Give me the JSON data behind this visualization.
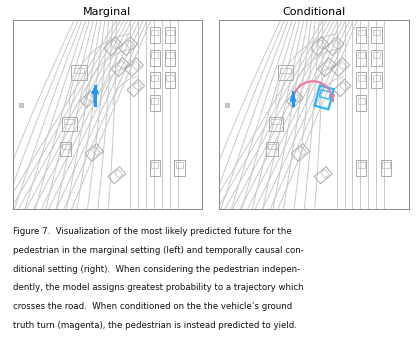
{
  "title_left": "Marginal",
  "title_right": "Conditional",
  "caption_lines": [
    "Figure 7.  Visualization of the most likely predicted future for the",
    "pedestrian in the marginal setting (left) and temporally causal con-",
    "ditional setting (right).  When considering the pedestrian indepen-",
    "dently, the model assigns greatest probability to a trajectory which",
    "crosses the road.  When conditioned on the the vehicle’s ground",
    "truth turn (magenta), the pedestrian is instead predicted to yield."
  ],
  "bg_color": "#ffffff",
  "panel_bg": "#ffffff",
  "road_line_color": "#c8c8c8",
  "car_edge_color": "#aaaaaa",
  "traj_blue": "#2196F3",
  "traj_magenta": "#e879a0",
  "traj_cyan": "#29b6f6",
  "dot_color": "#bbbbbb",
  "road_lines_diag": [
    [
      [
        -2,
        12
      ],
      [
        2.5,
        5.5
      ]
    ],
    [
      [
        -1.5,
        12
      ],
      [
        2.5,
        5.5
      ]
    ],
    [
      [
        -1.0,
        12
      ],
      [
        2.5,
        5.5
      ]
    ],
    [
      [
        -0.5,
        12
      ],
      [
        2.5,
        5.5
      ]
    ],
    [
      [
        0.0,
        12
      ],
      [
        2.5,
        5.5
      ]
    ],
    [
      [
        0.5,
        12
      ],
      [
        2.5,
        5.5
      ]
    ],
    [
      [
        1.0,
        12
      ],
      [
        2.5,
        5.5
      ]
    ],
    [
      [
        1.5,
        12
      ],
      [
        2.5,
        5.5
      ]
    ],
    [
      [
        2.0,
        12
      ],
      [
        2.5,
        5.5
      ]
    ],
    [
      [
        2.5,
        12
      ],
      [
        2.5,
        5.5
      ]
    ]
  ],
  "cars_top_right": [
    [
      7.5,
      9.2,
      0.55,
      0.85,
      0
    ],
    [
      8.3,
      9.2,
      0.55,
      0.85,
      0
    ],
    [
      7.5,
      8.0,
      0.55,
      0.85,
      0
    ],
    [
      8.3,
      8.0,
      0.55,
      0.85,
      0
    ],
    [
      7.5,
      6.8,
      0.55,
      0.85,
      0
    ],
    [
      8.3,
      6.8,
      0.55,
      0.85,
      0
    ],
    [
      7.5,
      5.6,
      0.55,
      0.85,
      0
    ],
    [
      7.5,
      2.2,
      0.55,
      0.85,
      0
    ],
    [
      8.8,
      2.2,
      0.55,
      0.85,
      0
    ]
  ],
  "cars_mid": [
    [
      5.3,
      8.6,
      0.55,
      0.85,
      -45
    ],
    [
      6.1,
      8.6,
      0.55,
      0.85,
      -45
    ],
    [
      5.7,
      7.5,
      0.55,
      0.85,
      -45
    ],
    [
      6.4,
      7.5,
      0.55,
      0.85,
      -45
    ],
    [
      6.5,
      6.4,
      0.5,
      0.8,
      -45
    ],
    [
      3.5,
      7.2,
      0.8,
      0.8,
      0
    ],
    [
      4.0,
      5.8,
      0.5,
      0.75,
      -45
    ],
    [
      3.0,
      4.5,
      0.75,
      0.75,
      0
    ],
    [
      2.8,
      3.2,
      0.6,
      0.75,
      0
    ],
    [
      4.3,
      3.0,
      0.55,
      0.8,
      -50
    ],
    [
      5.5,
      1.8,
      0.5,
      0.8,
      -50
    ]
  ]
}
